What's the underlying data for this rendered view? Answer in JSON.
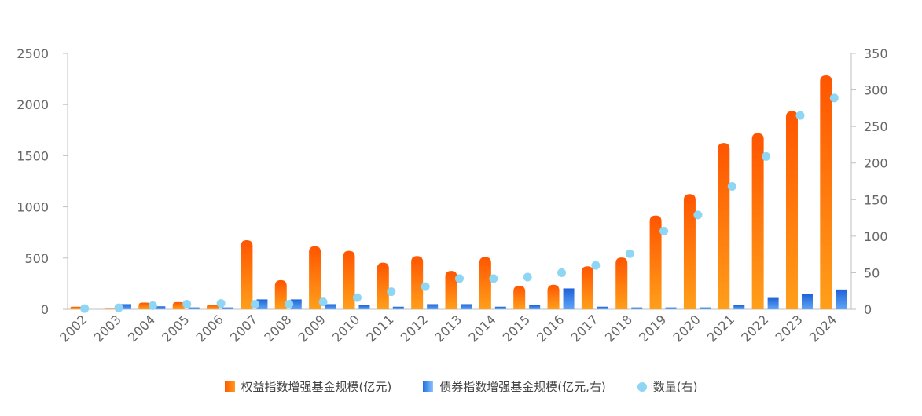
{
  "chart_data": {
    "type": "bar",
    "categories": [
      "2002",
      "2003",
      "2004",
      "2005",
      "2006",
      "2007",
      "2008",
      "2009",
      "2010",
      "2011",
      "2012",
      "2013",
      "2014",
      "2015",
      "2016",
      "2017",
      "2018",
      "2019",
      "2020",
      "2021",
      "2022",
      "2023",
      "2024"
    ],
    "series": [
      {
        "name": "权益指数增强基金规模(亿元)",
        "type": "bar",
        "axis": "left",
        "color": "#ff6a00",
        "values": [
          25,
          5,
          65,
          70,
          45,
          675,
          285,
          615,
          570,
          455,
          520,
          375,
          510,
          230,
          240,
          420,
          505,
          915,
          1125,
          1625,
          1720,
          1935,
          2285
        ]
      },
      {
        "name": "债券指数增强基金规模(亿元,右)",
        "type": "bar",
        "axis": "right",
        "color": "#2f7ae5",
        "values": [
          0,
          7,
          4,
          2.5,
          2.5,
          13.5,
          13.5,
          7,
          5.5,
          3.5,
          7,
          7,
          3.5,
          5.5,
          28.5,
          3.5,
          2.5,
          2.5,
          2.5,
          5.5,
          15.5,
          20.5,
          27
        ]
      },
      {
        "name": "数量(右)",
        "type": "scatter",
        "axis": "right",
        "color": "#8fd6f5",
        "values": [
          1,
          2,
          5,
          7,
          8,
          7,
          7,
          10,
          16,
          24,
          31,
          42,
          42,
          44,
          50,
          60,
          76,
          107,
          129,
          168,
          209,
          265,
          289
        ]
      }
    ],
    "y_left": {
      "min": 0,
      "max": 2500,
      "ticks": [
        0,
        500,
        1000,
        1500,
        2000,
        2500
      ]
    },
    "y_right": {
      "min": 0,
      "max": 350,
      "ticks": [
        0,
        50,
        100,
        150,
        200,
        250,
        300,
        350
      ]
    },
    "grid": false,
    "legend_position": "bottom"
  },
  "legend": {
    "equity_label": "权益指数增强基金规模(亿元)",
    "bond_label": "债券指数增强基金规模(亿元,右)",
    "count_label": "数量(右)"
  }
}
